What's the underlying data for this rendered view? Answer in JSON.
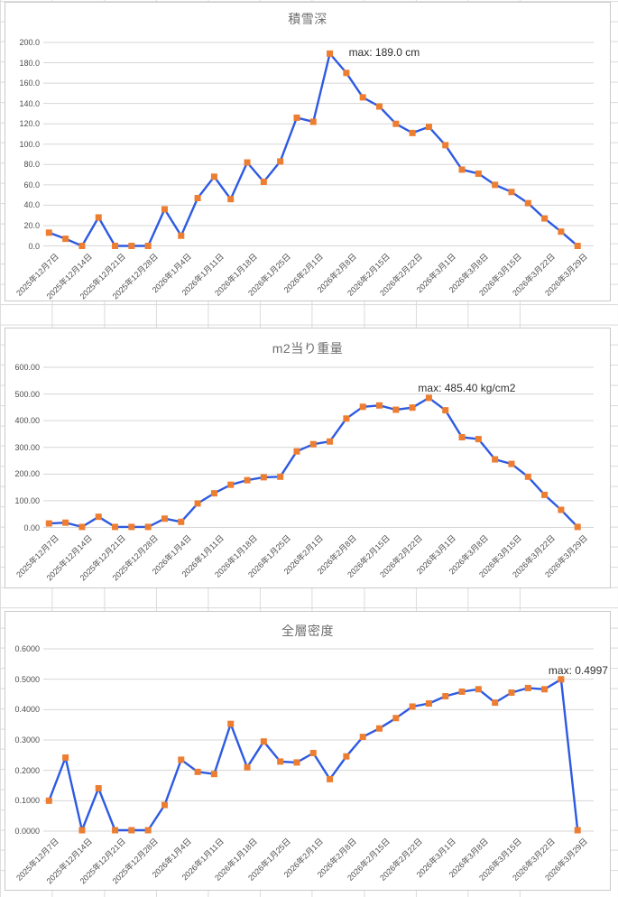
{
  "colors": {
    "series_line": "#2d5ae1",
    "marker": "#ED7D31",
    "gridline": "#d6d6d6",
    "chart_border": "#c9c9c9",
    "sheet_grid": "#dadada",
    "title_text": "#6e6e6e",
    "tick_text": "#4d4d4d",
    "annotation_text": "#2f2f2f"
  },
  "x_labels_shared": [
    "2025年12月7日",
    "2025年12月14日",
    "2025年12月21日",
    "2025年12月28日",
    "2026年1月4日",
    "2026年1月11日",
    "2026年1月18日",
    "2026年1月25日",
    "2026年2月1日",
    "2026年2月8日",
    "2026年2月15日",
    "2026年2月22日",
    "2026年3月1日",
    "2026年3月8日",
    "2026年3月15日",
    "2026年3月22日",
    "2026年3月29日"
  ],
  "chart_data": [
    {
      "type": "line",
      "title": "積雪深",
      "annotation": "max: 189.0 cm",
      "legend": "none",
      "grid": "horizontal",
      "y_max": 200,
      "ylim": [
        0,
        200
      ],
      "y_ticks": [
        "0.0",
        "20.0",
        "40.0",
        "60.0",
        "80.0",
        "100.0",
        "120.0",
        "140.0",
        "160.0",
        "180.0",
        "200.0"
      ],
      "points_per_label": 2,
      "x_labels": [
        "2025年12月7日",
        "2025年12月14日",
        "2025年12月21日",
        "2025年12月28日",
        "2026年1月4日",
        "2026年1月11日",
        "2026年1月18日",
        "2026年1月25日",
        "2026年2月1日",
        "2026年2月8日",
        "2026年2月15日",
        "2026年2月22日",
        "2026年3月1日",
        "2026年3月8日",
        "2026年3月15日",
        "2026年3月22日",
        "2026年3月29日"
      ],
      "values": [
        13,
        7,
        0,
        28,
        0,
        0,
        0,
        36,
        10,
        47,
        68,
        46,
        82,
        63,
        83,
        126,
        122,
        189,
        170,
        146,
        137,
        120,
        111,
        117,
        99,
        75,
        71,
        60,
        53,
        42,
        27,
        14,
        0
      ]
    },
    {
      "type": "line",
      "title": "m2当り重量",
      "annotation": "max: 485.40 kg/cm2",
      "legend": "none",
      "grid": "horizontal",
      "y_max": 600,
      "ylim": [
        0,
        600
      ],
      "y_ticks": [
        "0.00",
        "100.00",
        "200.00",
        "300.00",
        "400.00",
        "500.00",
        "600.00"
      ],
      "points_per_label": 2,
      "x_labels": [
        "2025年12月7日",
        "2025年12月14日",
        "2025年12月21日",
        "2025年12月28日",
        "2026年1月4日",
        "2026年1月11日",
        "2026年1月18日",
        "2026年1月25日",
        "2026年2月1日",
        "2026年2月8日",
        "2026年2月15日",
        "2026年2月22日",
        "2026年3月1日",
        "2026年3月8日",
        "2026年3月15日",
        "2026年3月22日",
        "2026年3月29日"
      ],
      "values": [
        15,
        18,
        2,
        40,
        2,
        2,
        2,
        33,
        21,
        90,
        128,
        160,
        177,
        188,
        190,
        285,
        312,
        322,
        408,
        452,
        457,
        441,
        449,
        485.4,
        439,
        338,
        331,
        255,
        238,
        190,
        122,
        66,
        2
      ]
    },
    {
      "type": "line",
      "title": "全層密度",
      "annotation": "max: 0.4997",
      "legend": "none",
      "grid": "horizontal",
      "y_max": 0.6,
      "ylim": [
        0,
        0.6
      ],
      "y_ticks": [
        "0.0000",
        "0.1000",
        "0.2000",
        "0.3000",
        "0.4000",
        "0.5000",
        "0.6000"
      ],
      "points_per_label": 2,
      "x_labels": [
        "2025年12月7日",
        "2025年12月14日",
        "2025年12月21日",
        "2025年12月28日",
        "2026年1月4日",
        "2026年1月11日",
        "2026年1月18日",
        "2026年1月25日",
        "2026年2月1日",
        "2026年2月8日",
        "2026年2月15日",
        "2026年2月22日",
        "2026年3月1日",
        "2026年3月8日",
        "2026年3月15日",
        "2026年3月22日",
        "2026年3月29日"
      ],
      "values": [
        0.1,
        0.242,
        0.003,
        0.141,
        0.003,
        0.003,
        0.003,
        0.086,
        0.235,
        0.195,
        0.188,
        0.353,
        0.21,
        0.295,
        0.229,
        0.226,
        0.257,
        0.171,
        0.246,
        0.31,
        0.338,
        0.372,
        0.41,
        0.42,
        0.444,
        0.459,
        0.467,
        0.423,
        0.456,
        0.471,
        0.467,
        0.4997,
        0.003
      ]
    }
  ]
}
